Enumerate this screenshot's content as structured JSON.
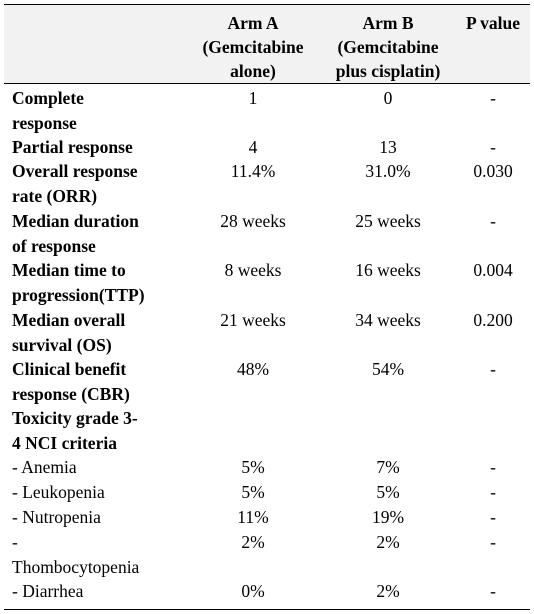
{
  "table": {
    "columns": [
      "",
      "Arm A (Gemcitabine alone)",
      "Arm B (Gemcitabine plus cisplatin)",
      "P value"
    ],
    "header": {
      "arm_a_l1": "Arm A",
      "arm_a_l2": "(Gemcitabine",
      "arm_a_l3": "alone)",
      "arm_b_l1": "Arm B",
      "arm_b_l2": "(Gemcitabine",
      "arm_b_l3": "plus cisplatin)",
      "pval": "P value"
    },
    "rows": [
      {
        "l1": "Complete",
        "l2": "response",
        "a": "1",
        "b": "0",
        "p": "-"
      },
      {
        "l1": "Partial response",
        "a": "4",
        "b": "13",
        "p": "-"
      },
      {
        "l1": "Overall response",
        "l2": "rate (ORR)",
        "a": "11.4%",
        "b": "31.0%",
        "p": "0.030"
      },
      {
        "l1": "Median duration",
        "l2": "of response",
        "a": "28 weeks",
        "b": "25 weeks",
        "p": "-"
      },
      {
        "l1": "Median time to",
        "l2": "progression(TTP)",
        "a": "8 weeks",
        "b": "16 weeks",
        "p": "0.004"
      },
      {
        "l1": "Median overall",
        "l2": "survival (OS)",
        "a": "21 weeks",
        "b": "34 weeks",
        "p": "0.200"
      },
      {
        "l1": "Clinical benefit",
        "l2": "response (CBR)",
        "a": "48%",
        "b": "54%",
        "p": "-"
      },
      {
        "l1": "Toxicity grade 3-",
        "l2": "4 NCI criteria"
      },
      {
        "l1": "- Anemia",
        "a": "5%",
        "b": "7%",
        "p": "-"
      },
      {
        "l1": "- Leukopenia",
        "a": "5%",
        "b": "5%",
        "p": "-"
      },
      {
        "l1": "- Nutropenia",
        "a": "11%",
        "b": "19%",
        "p": "-"
      },
      {
        "l1": "-",
        "l2": "Thombocytopenia",
        "a": "2%",
        "b": "2%",
        "p": "-"
      },
      {
        "l1": "- Diarrhea",
        "a": "0%",
        "b": "2%",
        "p": "-"
      }
    ]
  }
}
